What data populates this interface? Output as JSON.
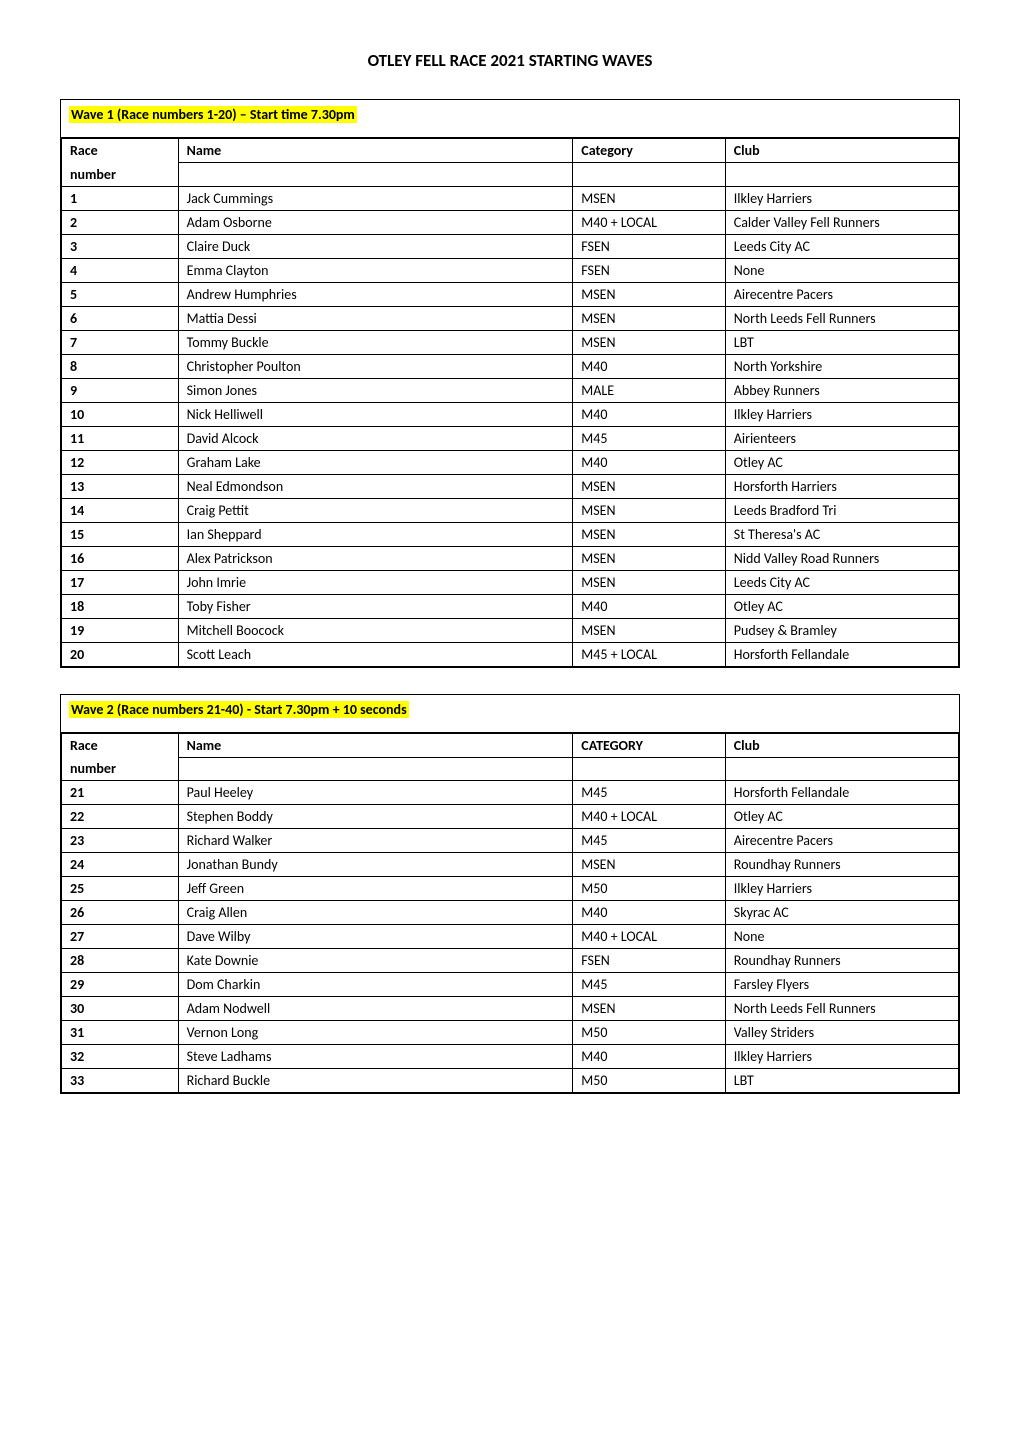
{
  "title": "OTLEY FELL RACE 2021 STARTING WAVES",
  "columns": {
    "race": "Race",
    "number": "number",
    "name": "Name",
    "category": "Category",
    "category_caps": "CATEGORY",
    "club": "Club"
  },
  "wave1": {
    "header": "Wave 1 (Race numbers 1-20) – Start time 7.30pm",
    "rows": [
      {
        "n": "1",
        "name": "Jack Cummings",
        "cat": "MSEN",
        "club": "Ilkley Harriers"
      },
      {
        "n": "2",
        "name": "Adam Osborne",
        "cat": "M40 + LOCAL",
        "club": "Calder Valley Fell Runners"
      },
      {
        "n": "3",
        "name": "Claire Duck",
        "cat": "FSEN",
        "club": "Leeds City AC"
      },
      {
        "n": "4",
        "name": "Emma Clayton",
        "cat": "FSEN",
        "club": "None"
      },
      {
        "n": "5",
        "name": "Andrew Humphries",
        "cat": "MSEN",
        "club": "Airecentre Pacers"
      },
      {
        "n": "6",
        "name": "Mattia Dessi",
        "cat": "MSEN",
        "club": "North Leeds Fell Runners"
      },
      {
        "n": "7",
        "name": "Tommy Buckle",
        "cat": "MSEN",
        "club": "LBT"
      },
      {
        "n": "8",
        "name": "Christopher Poulton",
        "cat": "M40",
        "club": "North Yorkshire"
      },
      {
        "n": "9",
        "name": "Simon Jones",
        "cat": "MALE",
        "club": "Abbey Runners"
      },
      {
        "n": "10",
        "name": "Nick Helliwell",
        "cat": "M40",
        "club": "Ilkley Harriers"
      },
      {
        "n": "11",
        "name": "David Alcock",
        "cat": "M45",
        "club": "Airienteers"
      },
      {
        "n": "12",
        "name": "Graham Lake",
        "cat": "M40",
        "club": "Otley AC"
      },
      {
        "n": "13",
        "name": "Neal Edmondson",
        "cat": "MSEN",
        "club": "Horsforth Harriers"
      },
      {
        "n": "14",
        "name": "Craig Pettit",
        "cat": "MSEN",
        "club": "Leeds Bradford Tri"
      },
      {
        "n": "15",
        "name": "Ian Sheppard",
        "cat": "MSEN",
        "club": "St Theresa's AC"
      },
      {
        "n": "16",
        "name": "Alex Patrickson",
        "cat": "MSEN",
        "club": "Nidd Valley Road Runners"
      },
      {
        "n": "17",
        "name": "John Imrie",
        "cat": "MSEN",
        "club": "Leeds City AC"
      },
      {
        "n": "18",
        "name": "Toby Fisher",
        "cat": "M40",
        "club": "Otley AC"
      },
      {
        "n": "19",
        "name": "Mitchell Boocock",
        "cat": "MSEN",
        "club": "Pudsey & Bramley"
      },
      {
        "n": "20",
        "name": "Scott Leach",
        "cat": "M45 + LOCAL",
        "club": "Horsforth Fellandale"
      }
    ]
  },
  "wave2": {
    "header": "Wave 2 (Race numbers 21-40) - Start 7.30pm + 10 seconds",
    "rows": [
      {
        "n": "21",
        "name": "Paul Heeley",
        "cat": "M45",
        "club": "Horsforth Fellandale"
      },
      {
        "n": "22",
        "name": "Stephen Boddy",
        "cat": "M40 + LOCAL",
        "club": "Otley AC"
      },
      {
        "n": "23",
        "name": "Richard Walker",
        "cat": "M45",
        "club": "Airecentre Pacers"
      },
      {
        "n": "24",
        "name": "Jonathan Bundy",
        "cat": "MSEN",
        "club": "Roundhay Runners"
      },
      {
        "n": "25",
        "name": "Jeff Green",
        "cat": "M50",
        "club": "Ilkley Harriers"
      },
      {
        "n": "26",
        "name": "Craig Allen",
        "cat": "M40",
        "club": "Skyrac AC"
      },
      {
        "n": "27",
        "name": "Dave Wilby",
        "cat": "M40 + LOCAL",
        "club": "None"
      },
      {
        "n": "28",
        "name": "Kate Downie",
        "cat": "FSEN",
        "club": "Roundhay Runners"
      },
      {
        "n": "29",
        "name": "Dom Charkin",
        "cat": "M45",
        "club": "Farsley Flyers"
      },
      {
        "n": "30",
        "name": "Adam Nodwell",
        "cat": "MSEN",
        "club": "North Leeds Fell Runners"
      },
      {
        "n": "31",
        "name": "Vernon Long",
        "cat": "M50",
        "club": "Valley Striders"
      },
      {
        "n": "32",
        "name": "Steve Ladhams",
        "cat": "M40",
        "club": "Ilkley Harriers"
      },
      {
        "n": "33",
        "name": "Richard Buckle",
        "cat": "M50",
        "club": "LBT"
      }
    ]
  }
}
